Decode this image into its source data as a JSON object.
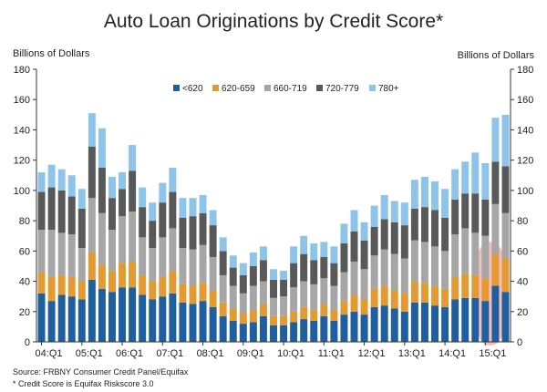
{
  "chart_data": {
    "type": "bar",
    "stacked": true,
    "title": "Auto Loan Originations by Credit Score*",
    "ylabel_left": "Billions of Dollars",
    "ylabel_right": "Billions of Dollars",
    "ylim": [
      0,
      180
    ],
    "yticks": [
      "0",
      "20",
      "40",
      "60",
      "80",
      "100",
      "120",
      "140",
      "160",
      "180"
    ],
    "xtick_labels": [
      {
        "label": "04:Q1",
        "index": 0
      },
      {
        "label": "05:Q1",
        "index": 4
      },
      {
        "label": "06:Q1",
        "index": 8
      },
      {
        "label": "07:Q1",
        "index": 12
      },
      {
        "label": "08:Q1",
        "index": 16
      },
      {
        "label": "09:Q1",
        "index": 20
      },
      {
        "label": "10:Q1",
        "index": 24
      },
      {
        "label": "11:Q1",
        "index": 28
      },
      {
        "label": "12:Q1",
        "index": 32
      },
      {
        "label": "13:Q1",
        "index": 36
      },
      {
        "label": "14:Q1",
        "index": 40
      },
      {
        "label": "15:Q1",
        "index": 44
      }
    ],
    "legend_position": "top-center",
    "grid": false,
    "highlight": {
      "from_index": 44,
      "to_index": 45,
      "color": "#f2a7a7"
    },
    "series": [
      {
        "name": "<620",
        "color": "#1f5fa0",
        "values": [
          32,
          27,
          31,
          30,
          28,
          41,
          35,
          33,
          36,
          36,
          31,
          28,
          30,
          32,
          26,
          25,
          27,
          23,
          17,
          14,
          12,
          13,
          17,
          11,
          11,
          13,
          15,
          14,
          17,
          14,
          18,
          20,
          18,
          23,
          24,
          22,
          20,
          26,
          26,
          24,
          23,
          28,
          29,
          29,
          27,
          37,
          33
        ]
      },
      {
        "name": "620-659",
        "color": "#e39a33",
        "values": [
          14,
          16,
          13,
          13,
          12,
          18,
          16,
          14,
          16,
          17,
          13,
          12,
          13,
          15,
          12,
          12,
          12,
          11,
          9,
          8,
          7,
          8,
          8,
          6,
          6,
          7,
          8,
          7,
          8,
          7,
          9,
          11,
          10,
          12,
          13,
          12,
          12,
          14,
          13,
          13,
          12,
          15,
          16,
          15,
          15,
          21,
          22
        ]
      },
      {
        "name": "660-719",
        "color": "#a6a6a6",
        "values": [
          28,
          31,
          28,
          28,
          22,
          36,
          34,
          27,
          31,
          33,
          25,
          22,
          26,
          28,
          24,
          24,
          25,
          22,
          18,
          15,
          13,
          16,
          15,
          12,
          13,
          16,
          17,
          17,
          17,
          16,
          19,
          22,
          20,
          22,
          24,
          24,
          23,
          27,
          27,
          26,
          25,
          28,
          30,
          28,
          28,
          33,
          30
        ]
      },
      {
        "name": "720-779",
        "color": "#595959",
        "values": [
          25,
          28,
          28,
          25,
          26,
          34,
          30,
          21,
          18,
          27,
          20,
          18,
          23,
          24,
          20,
          22,
          21,
          21,
          16,
          12,
          12,
          13,
          14,
          12,
          11,
          16,
          18,
          16,
          14,
          15,
          19,
          20,
          19,
          19,
          20,
          21,
          22,
          21,
          23,
          24,
          22,
          23,
          23,
          26,
          24,
          28,
          31
        ]
      },
      {
        "name": "780+",
        "color": "#8ec4ea",
        "values": [
          13,
          15,
          14,
          14,
          13,
          22,
          26,
          14,
          11,
          17,
          13,
          12,
          13,
          16,
          13,
          12,
          12,
          10,
          9,
          8,
          8,
          9,
          9,
          7,
          6,
          11,
          12,
          11,
          10,
          11,
          13,
          14,
          12,
          14,
          16,
          14,
          15,
          19,
          20,
          19,
          19,
          20,
          21,
          27,
          24,
          29,
          34
        ]
      }
    ]
  },
  "notes": {
    "source": "Source: FRBNY Consumer Credit Panel/Equifax",
    "footnote": "* Credit Score is Equifax Riskscore 3.0"
  }
}
